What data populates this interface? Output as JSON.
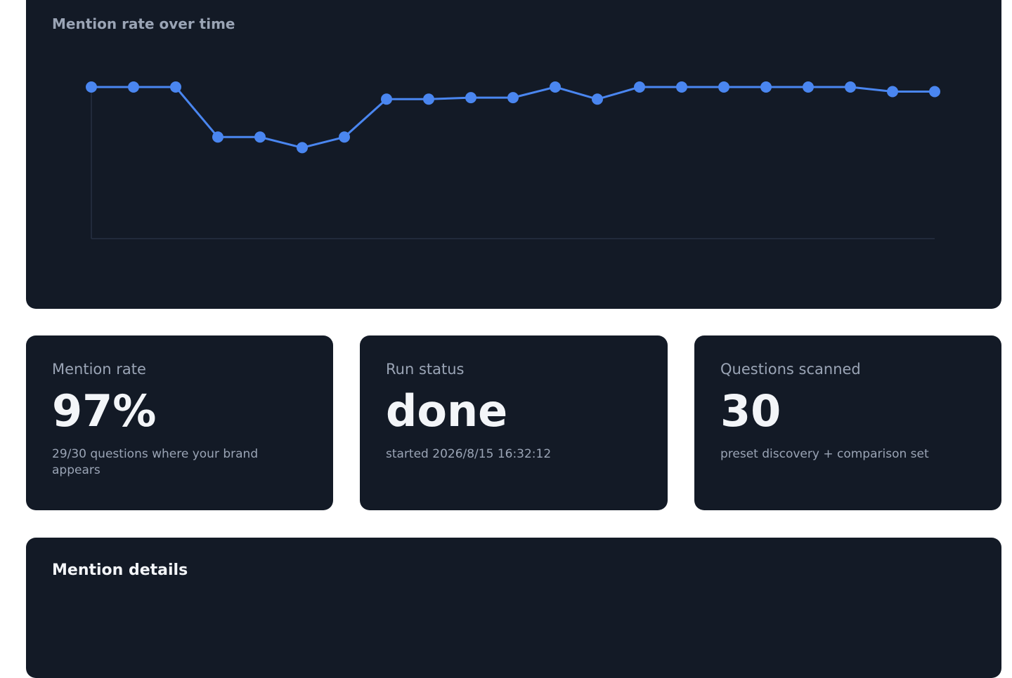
{
  "chart_data": {
    "type": "line",
    "title": "Mention rate over time",
    "categories": [
      null,
      null,
      null,
      null,
      null,
      null,
      null,
      null,
      null,
      null,
      null,
      null,
      null,
      null,
      null,
      null,
      null,
      null,
      null,
      null,
      null
    ],
    "series": [
      {
        "name": null,
        "color": "#4a86f0",
        "values": [
          100,
          100,
          100,
          67,
          67,
          60,
          67,
          92,
          92,
          93,
          93,
          100,
          92,
          100,
          100,
          100,
          100,
          100,
          100,
          97,
          97
        ]
      }
    ],
    "ylim": [
      0,
      100
    ]
  },
  "cards": [
    {
      "label": "Mention rate",
      "value": "97%",
      "note": "29/30 questions where your brand appears"
    },
    {
      "label": "Run status",
      "value": "done",
      "note": "started 2026/8/15 16:32:12"
    },
    {
      "label": "Questions scanned",
      "value": "30",
      "note": "preset discovery + comparison set"
    }
  ],
  "details": {
    "title": "Mention details"
  }
}
